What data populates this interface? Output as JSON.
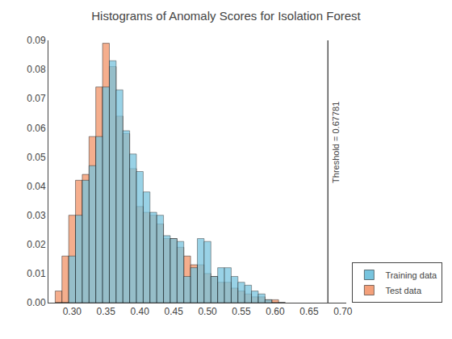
{
  "chart_data": {
    "type": "histogram",
    "title": "Histograms of Anomaly Scores for Isolation Forest",
    "bins": [
      0.275,
      0.285,
      0.295,
      0.305,
      0.315,
      0.325,
      0.335,
      0.345,
      0.355,
      0.365,
      0.375,
      0.385,
      0.395,
      0.405,
      0.415,
      0.425,
      0.435,
      0.445,
      0.455,
      0.465,
      0.475,
      0.485,
      0.495,
      0.505,
      0.515,
      0.525,
      0.535,
      0.545,
      0.555,
      0.565,
      0.575,
      0.585,
      0.595,
      0.605,
      0.615
    ],
    "series": [
      {
        "name": "Training data",
        "color": "#77C4DE",
        "values": [
          0.0,
          0.0,
          0.016,
          0.03,
          0.042,
          0.047,
          0.057,
          0.074,
          0.083,
          0.073,
          0.059,
          0.051,
          0.045,
          0.038,
          0.031,
          0.03,
          0.023,
          0.022,
          0.021,
          0.009,
          0.012,
          0.022,
          0.021,
          0.009,
          0.012,
          0.012,
          0.009,
          0.007,
          0.006,
          0.004,
          0.003,
          0.001,
          0.0,
          0.0
        ]
      },
      {
        "name": "Test data",
        "color": "#F4A07A",
        "values": [
          0.004,
          0.016,
          0.03,
          0.042,
          0.044,
          0.057,
          0.074,
          0.089,
          0.081,
          0.064,
          0.058,
          0.046,
          0.033,
          0.031,
          0.03,
          0.027,
          0.022,
          0.022,
          0.019,
          0.016,
          0.013,
          0.013,
          0.01,
          0.009,
          0.007,
          0.007,
          0.005,
          0.004,
          0.003,
          0.002,
          0.002,
          0.001,
          0.001,
          0.0
        ]
      }
    ],
    "vline": {
      "x": 0.67781,
      "label": "Threshold = 0.67781"
    },
    "xlim": [
      0.265,
      0.705
    ],
    "ylim": [
      0,
      0.09
    ],
    "xticks": [
      {
        "value": 0.3,
        "label": "0.30"
      },
      0.35,
      {
        "value": 0.4,
        "label": "0.40"
      },
      0.45,
      {
        "value": 0.5,
        "label": "0.50"
      },
      0.55,
      {
        "value": 0.6,
        "label": "0.60"
      },
      0.65,
      {
        "value": 0.7,
        "label": "0.70"
      }
    ],
    "yticks": [
      {
        "value": 0,
        "label": "0.00"
      },
      0.01,
      0.02,
      0.03,
      0.04,
      0.05,
      0.06,
      0.07,
      0.08,
      0.09
    ],
    "legend": "lower right",
    "grid": false
  }
}
